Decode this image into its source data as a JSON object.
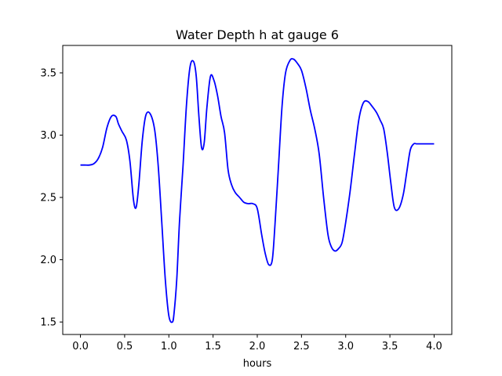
{
  "chart_data": {
    "type": "line",
    "title": "Water Depth h at gauge 6",
    "xlabel": "hours",
    "ylabel": "",
    "xlim": [
      -0.2,
      4.2
    ],
    "ylim": [
      1.4,
      3.72
    ],
    "xticks": [
      0.0,
      0.5,
      1.0,
      1.5,
      2.0,
      2.5,
      3.0,
      3.5,
      4.0
    ],
    "xtick_labels": [
      "0.0",
      "0.5",
      "1.0",
      "1.5",
      "2.0",
      "2.5",
      "3.0",
      "3.5",
      "4.0"
    ],
    "yticks": [
      1.5,
      2.0,
      2.5,
      3.0,
      3.5
    ],
    "ytick_labels": [
      "1.5",
      "2.0",
      "2.5",
      "3.0",
      "3.5"
    ],
    "grid": false,
    "series": [
      {
        "color": "#0000ff",
        "x": [
          0.0,
          0.05,
          0.1,
          0.15,
          0.2,
          0.25,
          0.3,
          0.35,
          0.4,
          0.43,
          0.47,
          0.52,
          0.56,
          0.6,
          0.63,
          0.66,
          0.7,
          0.74,
          0.79,
          0.84,
          0.88,
          0.92,
          0.96,
          1.0,
          1.04,
          1.06,
          1.09,
          1.12,
          1.16,
          1.2,
          1.24,
          1.28,
          1.31,
          1.34,
          1.37,
          1.4,
          1.43,
          1.47,
          1.51,
          1.55,
          1.59,
          1.63,
          1.67,
          1.71,
          1.75,
          1.8,
          1.85,
          1.9,
          1.95,
          2.0,
          2.05,
          2.09,
          2.13,
          2.17,
          2.2,
          2.24,
          2.28,
          2.32,
          2.37,
          2.41,
          2.45,
          2.5,
          2.55,
          2.6,
          2.65,
          2.7,
          2.75,
          2.8,
          2.84,
          2.88,
          2.92,
          2.96,
          3.0,
          3.05,
          3.1,
          3.15,
          3.2,
          3.25,
          3.3,
          3.35,
          3.39,
          3.43,
          3.47,
          3.51,
          3.55,
          3.6,
          3.65,
          3.69,
          3.73,
          3.77,
          3.8,
          3.84,
          3.88,
          3.92,
          3.95,
          3.98,
          4.0
        ],
        "y": [
          2.76,
          2.76,
          2.76,
          2.77,
          2.81,
          2.9,
          3.06,
          3.15,
          3.15,
          3.09,
          3.03,
          2.96,
          2.79,
          2.48,
          2.42,
          2.6,
          2.96,
          3.16,
          3.17,
          3.04,
          2.75,
          2.3,
          1.84,
          1.55,
          1.5,
          1.58,
          1.85,
          2.3,
          2.75,
          3.25,
          3.55,
          3.59,
          3.47,
          3.15,
          2.9,
          2.94,
          3.22,
          3.47,
          3.44,
          3.32,
          3.15,
          3.02,
          2.72,
          2.6,
          2.54,
          2.5,
          2.46,
          2.45,
          2.45,
          2.41,
          2.2,
          2.05,
          1.96,
          2.0,
          2.28,
          2.75,
          3.23,
          3.5,
          3.6,
          3.61,
          3.58,
          3.52,
          3.38,
          3.2,
          3.05,
          2.85,
          2.5,
          2.2,
          2.1,
          2.07,
          2.09,
          2.14,
          2.3,
          2.55,
          2.85,
          3.13,
          3.26,
          3.27,
          3.23,
          3.18,
          3.12,
          3.05,
          2.86,
          2.62,
          2.42,
          2.41,
          2.52,
          2.7,
          2.88,
          2.93,
          2.93,
          2.93,
          2.93,
          2.93,
          2.93,
          2.93,
          2.93
        ]
      }
    ]
  }
}
